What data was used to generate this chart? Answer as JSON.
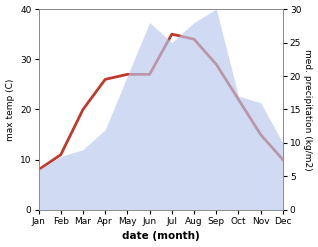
{
  "months": [
    "Jan",
    "Feb",
    "Mar",
    "Apr",
    "May",
    "Jun",
    "Jul",
    "Aug",
    "Sep",
    "Oct",
    "Nov",
    "Dec"
  ],
  "temperature": [
    8,
    11,
    20,
    26,
    27,
    27,
    35,
    34,
    29,
    22,
    15,
    10
  ],
  "precipitation": [
    6,
    8,
    9,
    12,
    20,
    28,
    25,
    28,
    30,
    17,
    16,
    10
  ],
  "temp_color": "#c0392b",
  "precip_color": "#b8c9ee",
  "title": "",
  "xlabel": "date (month)",
  "ylabel_left": "max temp (C)",
  "ylabel_right": "med. precipitation (kg/m2)",
  "ylim_left": [
    0,
    40
  ],
  "ylim_right": [
    0,
    30
  ],
  "yticks_left": [
    0,
    10,
    20,
    30,
    40
  ],
  "yticks_right": [
    0,
    5,
    10,
    15,
    20,
    25,
    30
  ],
  "background_color": "#ffffff",
  "line_width": 2.0,
  "alpha": 0.65
}
